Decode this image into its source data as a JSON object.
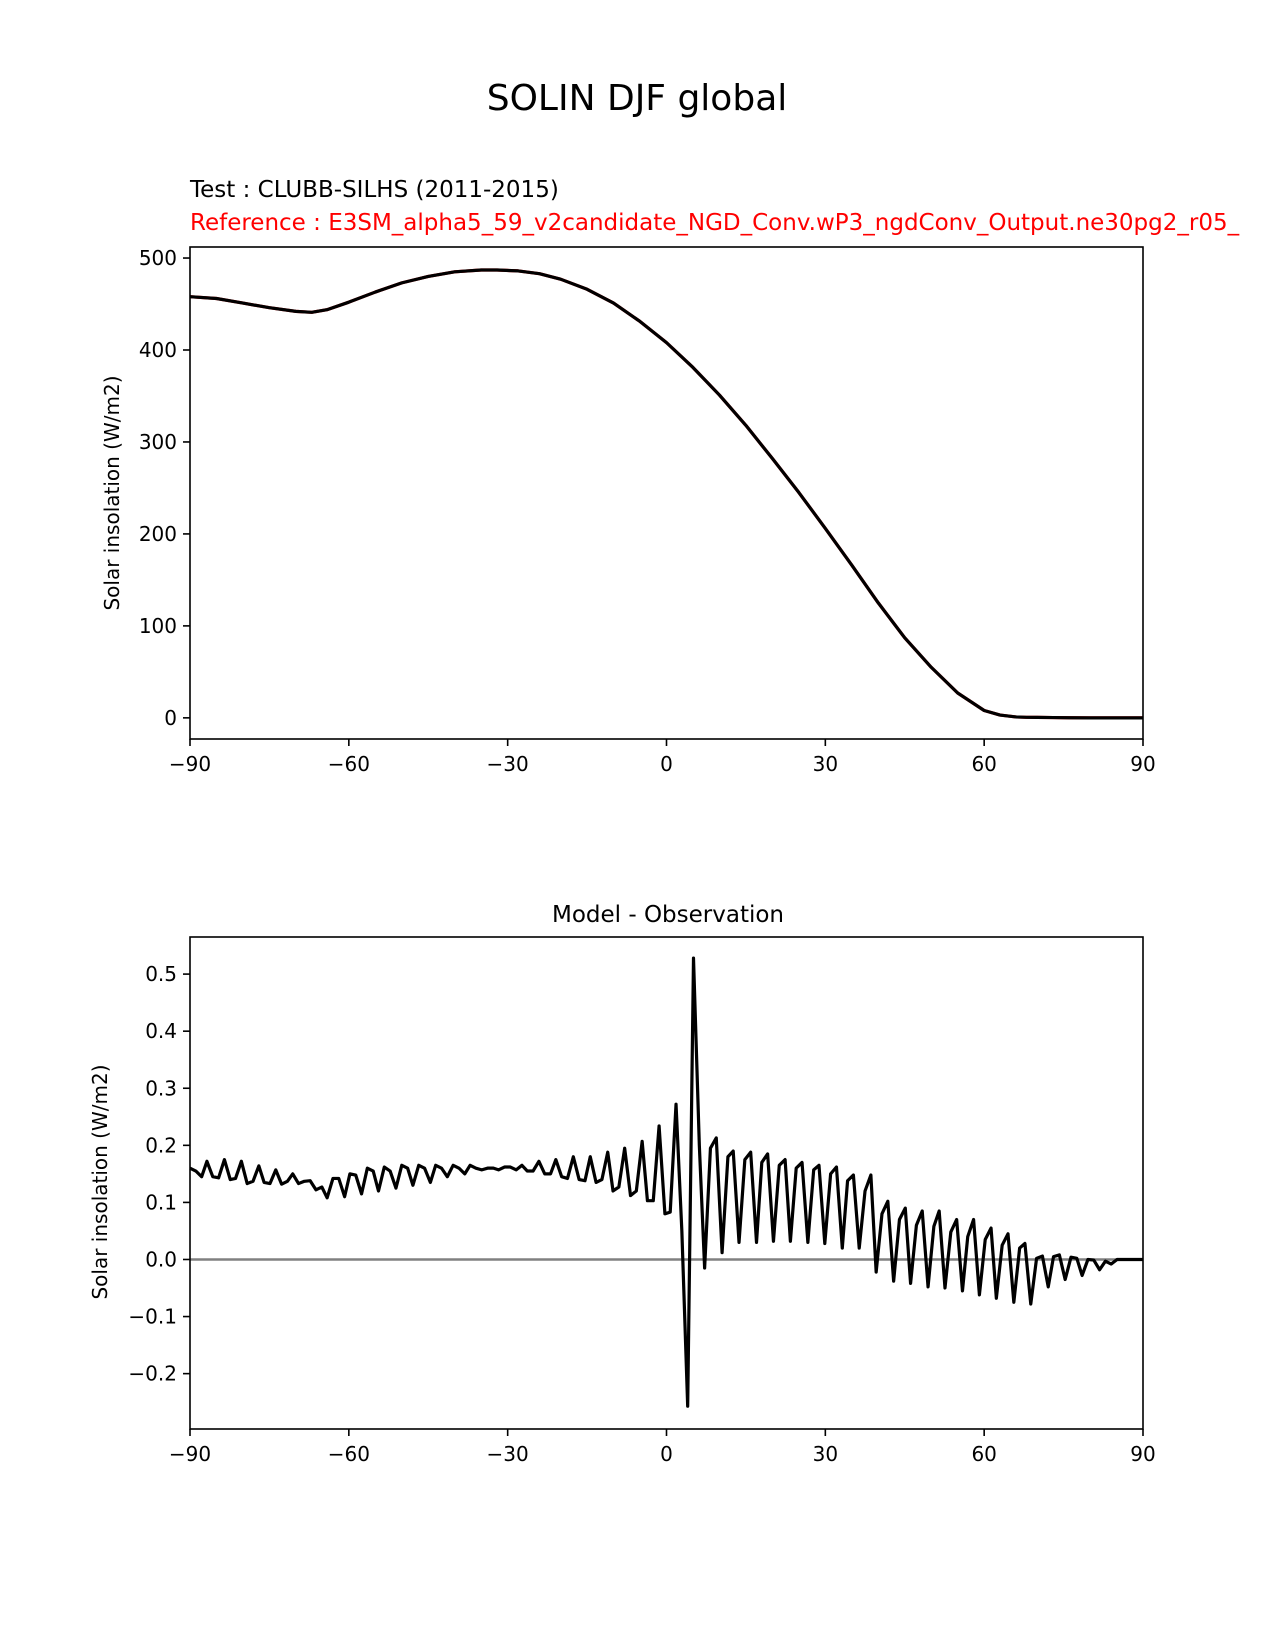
{
  "figure_title": "SOLIN DJF global",
  "chart_data": [
    {
      "type": "line",
      "subtitle_test": "Test : CLUBB-SILHS (2011-2015)",
      "subtitle_ref": "Reference : E3SM_alpha5_59_v2candidate_NGD_Conv.wP3_ngdConv_Output.ne30pg2_r05_",
      "ylabel": "Solar insolation (W/m2)",
      "xlabel": "",
      "xlim": [
        -90,
        90
      ],
      "ylim": [
        -23,
        512
      ],
      "xticks": [
        -90,
        -60,
        -30,
        0,
        30,
        60,
        90
      ],
      "xtick_labels": [
        "−90",
        "−60",
        "−30",
        "0",
        "30",
        "60",
        "90"
      ],
      "yticks": [
        0,
        100,
        200,
        300,
        400,
        500
      ],
      "ytick_labels": [
        "0",
        "100",
        "200",
        "300",
        "400",
        "500"
      ],
      "grid": false,
      "series": [
        {
          "color": "#ff0000",
          "x": [
            -90,
            -85,
            -80,
            -75,
            -70,
            -67,
            -64,
            -60,
            -55,
            -50,
            -45,
            -40,
            -35,
            -32,
            -28,
            -24,
            -20,
            -15,
            -10,
            -5,
            0,
            5,
            10,
            15,
            20,
            25,
            30,
            35,
            40,
            45,
            50,
            55,
            60,
            63,
            66,
            68,
            70,
            73,
            76,
            80,
            84,
            90
          ],
          "y": [
            458,
            456,
            451,
            446,
            442,
            441,
            444,
            452,
            463,
            473,
            480,
            485,
            487,
            487,
            486,
            483,
            477,
            466,
            451,
            431,
            408,
            381,
            351,
            318,
            282,
            245,
            206,
            166,
            125,
            87,
            55,
            27,
            8,
            3,
            1,
            0.6,
            0.5,
            0.3,
            0.1,
            0,
            0,
            0
          ]
        },
        {
          "color": "#000000",
          "x": [
            -90,
            -85,
            -80,
            -75,
            -70,
            -67,
            -64,
            -60,
            -55,
            -50,
            -45,
            -40,
            -35,
            -32,
            -28,
            -24,
            -20,
            -15,
            -10,
            -5,
            0,
            5,
            10,
            15,
            20,
            25,
            30,
            35,
            40,
            45,
            50,
            55,
            60,
            63,
            66,
            68,
            70,
            73,
            76,
            80,
            84,
            90
          ],
          "y": [
            458,
            456,
            451,
            446,
            442,
            441,
            444,
            452,
            463,
            473,
            480,
            485,
            487,
            487,
            486,
            483,
            477,
            466,
            451,
            431,
            408,
            381,
            351,
            318,
            282,
            245,
            206,
            166,
            125,
            87,
            55,
            27,
            8,
            3,
            1,
            0.6,
            0.5,
            0.3,
            0.1,
            0,
            0,
            0
          ]
        }
      ]
    },
    {
      "type": "line",
      "title": "Model - Observation",
      "ylabel": "Solar insolation (W/m2)",
      "xlabel": "",
      "xlim": [
        -90,
        90
      ],
      "ylim": [
        -0.297,
        0.565
      ],
      "xticks": [
        -90,
        -60,
        -30,
        0,
        30,
        60,
        90
      ],
      "xtick_labels": [
        "−90",
        "−60",
        "−30",
        "0",
        "30",
        "60",
        "90"
      ],
      "yticks": [
        -0.2,
        -0.1,
        0.0,
        0.1,
        0.2,
        0.3,
        0.4,
        0.5
      ],
      "ytick_labels": [
        "−0.2",
        "−0.1",
        "0.0",
        "0.1",
        "0.2",
        "0.3",
        "0.4",
        "0.5"
      ],
      "grid": false,
      "zero_line": {
        "y": 0,
        "color": "#808080"
      },
      "series": [
        {
          "color": "#000000",
          "x": [
            -90.0,
            -88.9,
            -87.8,
            -86.8,
            -85.7,
            -84.6,
            -83.5,
            -82.4,
            -81.4,
            -80.3,
            -79.2,
            -78.1,
            -77.0,
            -76.0,
            -74.9,
            -73.8,
            -72.7,
            -71.6,
            -70.6,
            -69.5,
            -68.4,
            -67.3,
            -66.2,
            -65.1,
            -64.1,
            -63.0,
            -61.9,
            -60.8,
            -59.8,
            -58.7,
            -57.6,
            -56.5,
            -55.4,
            -54.4,
            -53.3,
            -52.2,
            -51.1,
            -50.0,
            -48.9,
            -47.9,
            -46.8,
            -45.7,
            -44.6,
            -43.6,
            -42.5,
            -41.4,
            -40.3,
            -39.2,
            -38.1,
            -37.1,
            -36.0,
            -34.9,
            -33.8,
            -32.7,
            -31.7,
            -30.6,
            -29.5,
            -28.4,
            -27.3,
            -26.3,
            -25.2,
            -24.1,
            -23.0,
            -21.9,
            -20.9,
            -19.8,
            -18.7,
            -17.6,
            -16.5,
            -15.4,
            -14.4,
            -13.3,
            -12.2,
            -11.1,
            -10.1,
            -9.0,
            -7.9,
            -6.8,
            -5.7,
            -4.6,
            -3.6,
            -2.5,
            -1.4,
            -0.3,
            0.7,
            1.8,
            2.9,
            4.0,
            5.1,
            6.2,
            7.2,
            8.3,
            9.4,
            10.5,
            11.6,
            12.6,
            13.7,
            14.8,
            15.9,
            17.0,
            18.0,
            19.1,
            20.2,
            21.3,
            22.4,
            23.4,
            24.5,
            25.6,
            26.7,
            27.8,
            28.8,
            29.9,
            31.0,
            32.1,
            33.2,
            34.2,
            35.3,
            36.4,
            37.5,
            38.6,
            39.6,
            40.7,
            41.8,
            42.9,
            44.0,
            45.1,
            46.1,
            47.2,
            48.3,
            49.4,
            50.5,
            51.5,
            52.6,
            53.7,
            54.8,
            55.9,
            56.9,
            58.0,
            59.1,
            60.2,
            61.3,
            62.3,
            63.4,
            64.5,
            65.6,
            66.7,
            67.7,
            68.8,
            69.9,
            71.0,
            72.1,
            73.1,
            74.2,
            75.3,
            76.4,
            77.5,
            78.5,
            79.6,
            80.7,
            81.8,
            82.9,
            84.0,
            85.1,
            86.2,
            87.2,
            88.3,
            89.4,
            90.0
          ],
          "y": [
            0.16,
            0.155,
            0.145,
            0.172,
            0.145,
            0.143,
            0.175,
            0.14,
            0.142,
            0.172,
            0.133,
            0.137,
            0.164,
            0.135,
            0.133,
            0.157,
            0.132,
            0.137,
            0.15,
            0.133,
            0.137,
            0.138,
            0.122,
            0.127,
            0.108,
            0.142,
            0.142,
            0.11,
            0.15,
            0.148,
            0.115,
            0.16,
            0.155,
            0.12,
            0.162,
            0.155,
            0.125,
            0.165,
            0.16,
            0.13,
            0.165,
            0.16,
            0.135,
            0.165,
            0.16,
            0.145,
            0.165,
            0.16,
            0.15,
            0.165,
            0.16,
            0.157,
            0.16,
            0.16,
            0.157,
            0.162,
            0.162,
            0.157,
            0.165,
            0.155,
            0.155,
            0.172,
            0.15,
            0.15,
            0.175,
            0.145,
            0.142,
            0.18,
            0.14,
            0.138,
            0.18,
            0.135,
            0.14,
            0.188,
            0.12,
            0.127,
            0.195,
            0.112,
            0.12,
            0.207,
            0.103,
            0.103,
            0.234,
            0.08,
            0.083,
            0.272,
            0.05,
            -0.257,
            0.528,
            0.2,
            -0.015,
            0.195,
            0.213,
            0.012,
            0.18,
            0.19,
            0.03,
            0.175,
            0.188,
            0.03,
            0.17,
            0.185,
            0.032,
            0.165,
            0.175,
            0.032,
            0.16,
            0.17,
            0.03,
            0.157,
            0.165,
            0.028,
            0.15,
            0.162,
            0.02,
            0.138,
            0.148,
            0.02,
            0.12,
            0.148,
            -0.022,
            0.08,
            0.102,
            -0.038,
            0.07,
            0.09,
            -0.042,
            0.06,
            0.085,
            -0.048,
            0.058,
            0.085,
            -0.05,
            0.048,
            0.07,
            -0.055,
            0.04,
            0.07,
            -0.062,
            0.035,
            0.055,
            -0.068,
            0.025,
            0.045,
            -0.075,
            0.02,
            0.028,
            -0.078,
            0.002,
            0.006,
            -0.048,
            0.005,
            0.008,
            -0.035,
            0.004,
            0.002,
            -0.028,
            0.0,
            -0.001,
            -0.018,
            -0.003,
            -0.008,
            0.0,
            0.0,
            0.0,
            0.0,
            0.0,
            0.0
          ]
        }
      ]
    }
  ]
}
